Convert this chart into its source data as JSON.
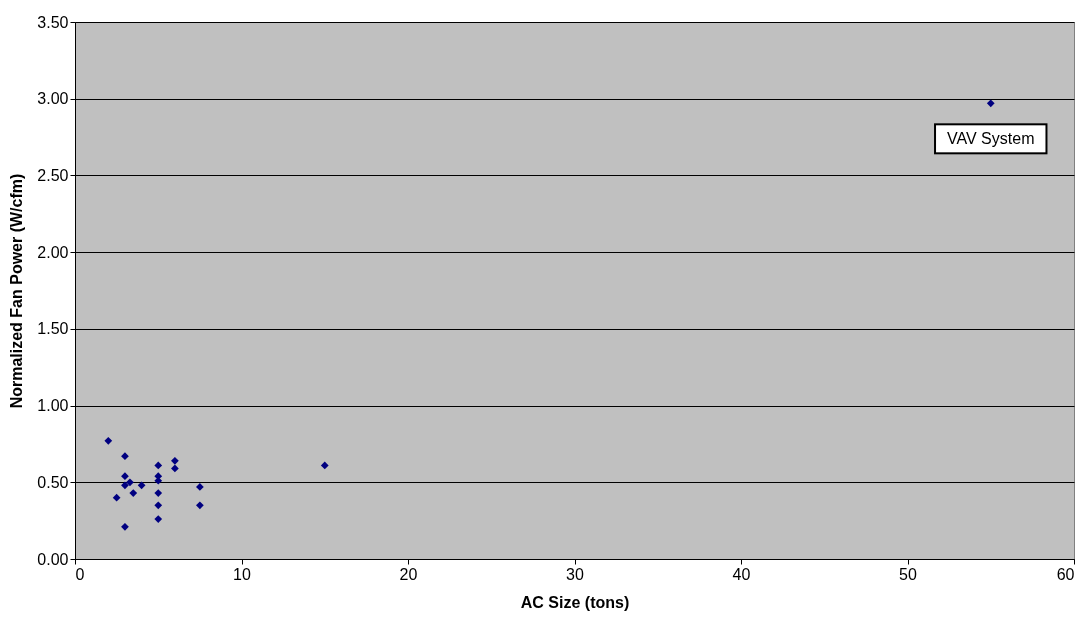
{
  "chart_data": {
    "type": "scatter",
    "xlabel": "AC Size (tons)",
    "ylabel": "Normalized Fan Power (W/cfm)",
    "x": [
      2,
      3,
      2.5,
      3,
      3,
      3,
      3.3,
      3.5,
      4,
      5,
      5,
      5,
      5,
      5,
      5,
      6,
      6,
      7.5,
      7.5,
      15,
      55
    ],
    "series": [
      {
        "color": "#000080",
        "values": [
          0.77,
          0.67,
          0.4,
          0.21,
          0.54,
          0.48,
          0.5,
          0.43,
          0.48,
          0.61,
          0.54,
          0.51,
          0.43,
          0.35,
          0.26,
          0.64,
          0.59,
          0.47,
          0.35,
          0.61,
          2.97
        ]
      }
    ],
    "xlim": [
      0,
      60
    ],
    "xticks": [
      0,
      10,
      20,
      30,
      40,
      50,
      60
    ],
    "ylim": [
      0,
      3.5
    ],
    "yticks": [
      {
        "value": 0,
        "label": "0.00"
      },
      {
        "value": 0.5,
        "label": "0.50"
      },
      {
        "value": 1,
        "label": "1.00"
      },
      {
        "value": 1.5,
        "label": "1.50"
      },
      {
        "value": 2,
        "label": "2.00"
      },
      {
        "value": 2.5,
        "label": "2.50"
      },
      {
        "value": 3,
        "label": "3.00"
      },
      {
        "value": 3.5,
        "label": "3.50"
      }
    ],
    "grid": "y",
    "marker": "diamond",
    "annotations": [
      {
        "text": "VAV System",
        "x": 55,
        "y": 2.97
      }
    ]
  }
}
